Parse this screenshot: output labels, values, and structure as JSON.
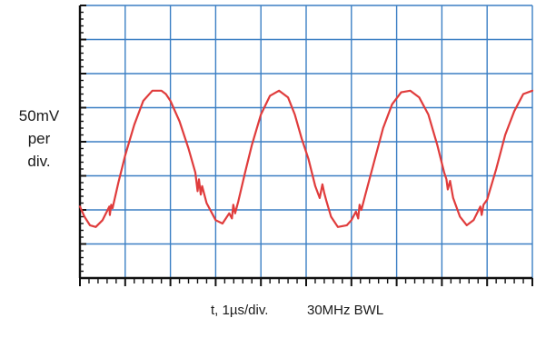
{
  "chart_data": {
    "type": "line",
    "title": "",
    "ylabel_lines": [
      "50mV",
      "per",
      "div."
    ],
    "xlabel": "t, 1µs/div.",
    "annotation": "30MHz BWL",
    "x_divisions": 10,
    "y_divisions": 8,
    "grid": true,
    "xlim_div": [
      0,
      10
    ],
    "ylim_div": [
      -4,
      4
    ],
    "line_color": "#e03c3c",
    "grid_color": "#3b7fc4",
    "series": [
      {
        "x": [
          0.0,
          0.1,
          0.22,
          0.35,
          0.5,
          0.65,
          0.66,
          0.69,
          0.72,
          0.85,
          1.0,
          1.2,
          1.4,
          1.6,
          1.8,
          1.9,
          2.0,
          2.2,
          2.4,
          2.55,
          2.6,
          2.63,
          2.67,
          2.7,
          2.8,
          3.0,
          3.15,
          3.3,
          3.36,
          3.39,
          3.43,
          3.5,
          3.65,
          3.8,
          4.0,
          4.2,
          4.4,
          4.6,
          4.75,
          4.9,
          5.05,
          5.2,
          5.3,
          5.36,
          5.4,
          5.45,
          5.55,
          5.7,
          5.9,
          6.0,
          6.1,
          6.15,
          6.18,
          6.22,
          6.3,
          6.5,
          6.7,
          6.9,
          7.1,
          7.3,
          7.5,
          7.7,
          7.9,
          8.05,
          8.1,
          8.13,
          8.18,
          8.25,
          8.4,
          8.55,
          8.7,
          8.85,
          8.88,
          8.92,
          9.0,
          9.2,
          9.4,
          9.6,
          9.8,
          10.0
        ],
        "y": [
          -1.9,
          -2.2,
          -2.45,
          -2.5,
          -2.3,
          -1.9,
          -2.15,
          -1.85,
          -1.95,
          -1.2,
          -0.4,
          0.5,
          1.2,
          1.5,
          1.5,
          1.4,
          1.2,
          0.6,
          -0.2,
          -0.9,
          -1.45,
          -1.1,
          -1.55,
          -1.3,
          -1.8,
          -2.3,
          -2.4,
          -2.1,
          -2.25,
          -1.85,
          -2.1,
          -1.75,
          -0.9,
          -0.1,
          0.8,
          1.35,
          1.5,
          1.3,
          0.8,
          0.1,
          -0.5,
          -1.3,
          -1.65,
          -1.25,
          -1.5,
          -1.75,
          -2.2,
          -2.5,
          -2.45,
          -2.3,
          -2.05,
          -2.25,
          -1.85,
          -2.0,
          -1.6,
          -0.6,
          0.4,
          1.1,
          1.45,
          1.5,
          1.3,
          0.8,
          -0.1,
          -0.9,
          -1.1,
          -1.4,
          -1.15,
          -1.65,
          -2.2,
          -2.45,
          -2.3,
          -1.9,
          -2.15,
          -1.85,
          -1.7,
          -0.8,
          0.2,
          0.9,
          1.4,
          1.5
        ]
      }
    ]
  }
}
